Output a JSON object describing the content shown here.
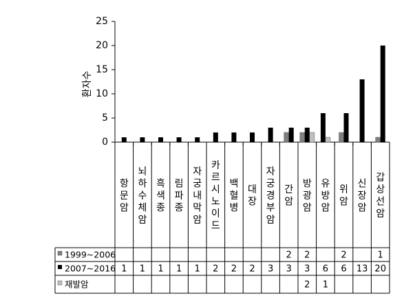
{
  "chart_data": {
    "type": "bar",
    "ylabel": "환자수",
    "ylim": [
      0,
      25
    ],
    "yticks": [
      0,
      5,
      10,
      15,
      20,
      25
    ],
    "grid": false,
    "legend": "bottom-left table",
    "categories": [
      "항문암",
      "뇌하수체암",
      "흑색종",
      "림파종",
      "자궁내막암",
      "카르시노이드",
      "백혈병",
      "대장",
      "자궁경부암",
      "간암",
      "방광암",
      "유방암",
      "위암",
      "신장암",
      "갑상선암"
    ],
    "series": [
      {
        "name": "1999~2006",
        "color": "#808080",
        "values": [
          null,
          null,
          null,
          null,
          null,
          null,
          null,
          null,
          null,
          2,
          2,
          null,
          2,
          null,
          1
        ]
      },
      {
        "name": "2007~2016",
        "color": "#000000",
        "values": [
          1,
          1,
          1,
          1,
          1,
          2,
          2,
          2,
          3,
          3,
          3,
          6,
          6,
          13,
          20
        ]
      },
      {
        "name": "재발암",
        "color": "#c0c0c0",
        "values": [
          null,
          null,
          null,
          null,
          null,
          null,
          null,
          null,
          null,
          null,
          2,
          1,
          null,
          null,
          null
        ]
      }
    ]
  }
}
